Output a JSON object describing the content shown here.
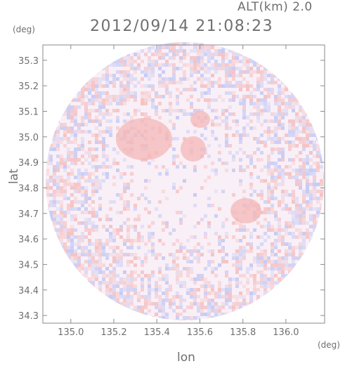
{
  "header": {
    "altitude_label": "ALT(km) 2.0",
    "timestamp": "2012/09/14 21:08:23"
  },
  "chart_data": {
    "type": "heatmap",
    "xlabel": "lon",
    "ylabel": "lat",
    "x_unit": "(deg)",
    "y_unit": "(deg)",
    "xlim": [
      134.87,
      136.18
    ],
    "ylim": [
      34.27,
      35.36
    ],
    "x_ticks": [
      "135.0",
      "135.2",
      "135.4",
      "135.6",
      "135.8",
      "136.0"
    ],
    "y_ticks": [
      "34.3",
      "34.4",
      "34.5",
      "34.6",
      "34.7",
      "34.8",
      "34.9",
      "35.0",
      "35.1",
      "35.2",
      "35.3"
    ],
    "colors": {
      "positive": "#f3b7b7",
      "negative": "#b9c2f4",
      "background": "#f9eff6",
      "frame": "#8a8a8a"
    }
  }
}
